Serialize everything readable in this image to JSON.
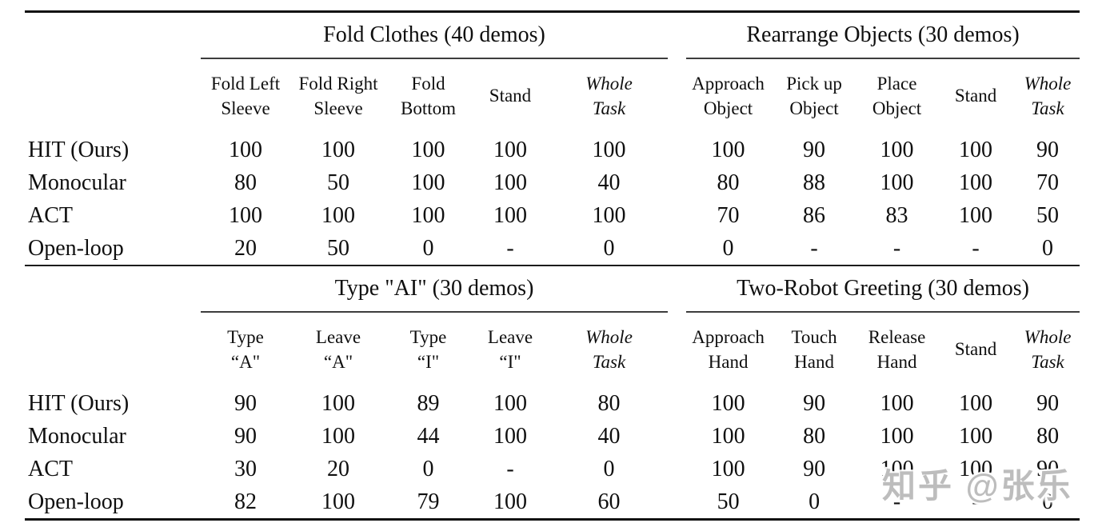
{
  "watermark": {
    "text": "知乎 @张乐"
  },
  "colors": {
    "text": "#0f0f0f",
    "rule_heavy": "#121212",
    "rule_mid": "#1c1c1c",
    "rule_light": "#3d3d3d",
    "watermark": "#bdbdbd"
  },
  "tables": [
    {
      "groups": [
        {
          "title": "Fold Clothes (40 demos)",
          "columns": [
            {
              "lines": "Fold Left\nSleeve",
              "italic": false
            },
            {
              "lines": "Fold Right\nSleeve",
              "italic": false
            },
            {
              "lines": "Fold\nBottom",
              "italic": false
            },
            {
              "lines": "Stand",
              "italic": false
            },
            {
              "lines": "Whole\nTask",
              "italic": true
            }
          ]
        },
        {
          "title": "Rearrange Objects (30 demos)",
          "columns": [
            {
              "lines": "Approach\nObject",
              "italic": false
            },
            {
              "lines": "Pick up\nObject",
              "italic": false
            },
            {
              "lines": "Place\nObject",
              "italic": false
            },
            {
              "lines": "Stand",
              "italic": false
            },
            {
              "lines": "Whole\nTask",
              "italic": true
            }
          ]
        }
      ],
      "rows": [
        {
          "label": "HIT (Ours)",
          "cells": [
            {
              "t": "100",
              "bold": false
            },
            {
              "t": "100",
              "bold": false
            },
            {
              "t": "100",
              "bold": false
            },
            {
              "t": "100",
              "bold": false
            },
            {
              "t": "100",
              "bold": true
            },
            {
              "t": "100",
              "bold": false
            },
            {
              "t": "90",
              "bold": false
            },
            {
              "t": "100",
              "bold": false
            },
            {
              "t": "100",
              "bold": false
            },
            {
              "t": "90",
              "bold": true
            }
          ]
        },
        {
          "label": "Monocular",
          "cells": [
            {
              "t": "80",
              "bold": false
            },
            {
              "t": "50",
              "bold": false
            },
            {
              "t": "100",
              "bold": false
            },
            {
              "t": "100",
              "bold": false
            },
            {
              "t": "40",
              "bold": false
            },
            {
              "t": "80",
              "bold": false
            },
            {
              "t": "88",
              "bold": false
            },
            {
              "t": "100",
              "bold": false
            },
            {
              "t": "100",
              "bold": false
            },
            {
              "t": "70",
              "bold": false
            }
          ]
        },
        {
          "label": "ACT",
          "cells": [
            {
              "t": "100",
              "bold": false
            },
            {
              "t": "100",
              "bold": false
            },
            {
              "t": "100",
              "bold": false
            },
            {
              "t": "100",
              "bold": false
            },
            {
              "t": "100",
              "bold": true
            },
            {
              "t": "70",
              "bold": false
            },
            {
              "t": "86",
              "bold": false
            },
            {
              "t": "83",
              "bold": false
            },
            {
              "t": "100",
              "bold": false
            },
            {
              "t": "50",
              "bold": false
            }
          ]
        },
        {
          "label": "Open-loop",
          "cells": [
            {
              "t": "20",
              "bold": false
            },
            {
              "t": "50",
              "bold": false
            },
            {
              "t": "0",
              "bold": false
            },
            {
              "t": "-",
              "bold": false
            },
            {
              "t": "0",
              "bold": false
            },
            {
              "t": "0",
              "bold": false
            },
            {
              "t": "-",
              "bold": false
            },
            {
              "t": "-",
              "bold": false
            },
            {
              "t": "-",
              "bold": false
            },
            {
              "t": "0",
              "bold": false
            }
          ]
        }
      ]
    },
    {
      "groups": [
        {
          "title": "Type \"AI\" (30 demos)",
          "columns": [
            {
              "lines": "Type\n“A\"",
              "italic": false
            },
            {
              "lines": "Leave\n“A\"",
              "italic": false
            },
            {
              "lines": "Type\n“I\"",
              "italic": false
            },
            {
              "lines": "Leave\n“I\"",
              "italic": false
            },
            {
              "lines": "Whole\nTask",
              "italic": true
            }
          ]
        },
        {
          "title": "Two-Robot Greeting (30 demos)",
          "columns": [
            {
              "lines": "Approach\nHand",
              "italic": false
            },
            {
              "lines": "Touch\nHand",
              "italic": false
            },
            {
              "lines": "Release\nHand",
              "italic": false
            },
            {
              "lines": "Stand",
              "italic": false
            },
            {
              "lines": "Whole\nTask",
              "italic": true
            }
          ]
        }
      ],
      "rows": [
        {
          "label": "HIT (Ours)",
          "cells": [
            {
              "t": "90",
              "bold": false
            },
            {
              "t": "100",
              "bold": false
            },
            {
              "t": "89",
              "bold": false
            },
            {
              "t": "100",
              "bold": false
            },
            {
              "t": "80",
              "bold": true
            },
            {
              "t": "100",
              "bold": false
            },
            {
              "t": "90",
              "bold": false
            },
            {
              "t": "100",
              "bold": false
            },
            {
              "t": "100",
              "bold": false
            },
            {
              "t": "90",
              "bold": true
            }
          ]
        },
        {
          "label": "Monocular",
          "cells": [
            {
              "t": "90",
              "bold": false
            },
            {
              "t": "100",
              "bold": false
            },
            {
              "t": "44",
              "bold": false
            },
            {
              "t": "100",
              "bold": false
            },
            {
              "t": "40",
              "bold": false
            },
            {
              "t": "100",
              "bold": false
            },
            {
              "t": "80",
              "bold": false
            },
            {
              "t": "100",
              "bold": false
            },
            {
              "t": "100",
              "bold": false
            },
            {
              "t": "80",
              "bold": false
            }
          ]
        },
        {
          "label": "ACT",
          "cells": [
            {
              "t": "30",
              "bold": false
            },
            {
              "t": "20",
              "bold": false
            },
            {
              "t": "0",
              "bold": false
            },
            {
              "t": "-",
              "bold": false
            },
            {
              "t": "0",
              "bold": false
            },
            {
              "t": "100",
              "bold": false
            },
            {
              "t": "90",
              "bold": false
            },
            {
              "t": "100",
              "bold": false
            },
            {
              "t": "100",
              "bold": false
            },
            {
              "t": "90",
              "bold": true
            }
          ]
        },
        {
          "label": "Open-loop",
          "cells": [
            {
              "t": "82",
              "bold": false
            },
            {
              "t": "100",
              "bold": false
            },
            {
              "t": "79",
              "bold": false
            },
            {
              "t": "100",
              "bold": false
            },
            {
              "t": "60",
              "bold": false
            },
            {
              "t": "50",
              "bold": false
            },
            {
              "t": "0",
              "bold": false
            },
            {
              "t": "-",
              "bold": false
            },
            {
              "t": "-",
              "bold": false
            },
            {
              "t": "0",
              "bold": false
            }
          ]
        }
      ]
    }
  ]
}
